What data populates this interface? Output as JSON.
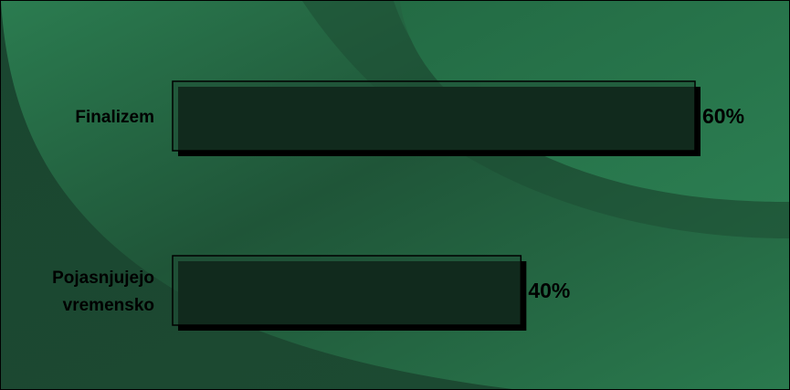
{
  "chart_data": {
    "type": "bar",
    "orientation": "horizontal",
    "categories": [
      "Finalizem",
      "Pojasnjujejo vremensko"
    ],
    "category_lines": [
      [
        "Finalizem"
      ],
      [
        "Pojasnjujejo",
        "vremensko"
      ]
    ],
    "values": [
      60,
      40
    ],
    "value_labels": [
      "60%",
      "40%"
    ],
    "unit": "%",
    "xlim": [
      0,
      60
    ],
    "grid": false,
    "legend": "none"
  },
  "colors": {
    "background_dark": "#1c4a31",
    "background_light": "#2a7a4e",
    "bar_fill": "#1f4d34",
    "bar_border": "#000000",
    "bar_shadow": "#000000"
  }
}
